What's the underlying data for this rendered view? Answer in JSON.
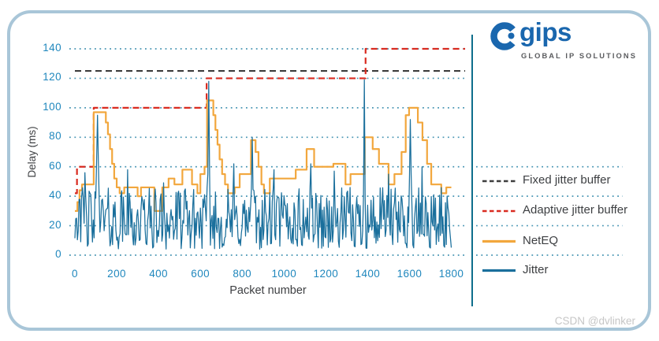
{
  "panel": {
    "border_color": "#a9c6d8",
    "background": "#ffffff"
  },
  "logo": {
    "brand": "gips",
    "tagline": "GLOBAL IP SOLUTIONS",
    "brand_color": "#1a67ae",
    "tagline_color": "#5a5b5e"
  },
  "watermark": {
    "text": "CSDN @dvlinker",
    "color": "#c6c6c6"
  },
  "legend_panel": {
    "divider_color": "#0e6e8c"
  },
  "chart_data": {
    "type": "line",
    "title": "",
    "xlabel": "Packet number",
    "ylabel": "Delay (ms)",
    "xlim": [
      0,
      1870
    ],
    "ylim": [
      0,
      150
    ],
    "x_ticks": [
      0,
      200,
      400,
      600,
      800,
      1000,
      1200,
      1400,
      1600,
      1800
    ],
    "y_ticks": [
      0,
      20,
      40,
      60,
      80,
      100,
      120,
      140
    ],
    "grid": "horizontal-dotted",
    "grid_color": "#4795b3",
    "tick_label_color": "#1f87bd",
    "axis_title_color": "#3d3f42",
    "legend_position": "right",
    "legend_text_color": "#3d3f42",
    "series": [
      {
        "name": "Fixed jitter buffer",
        "type": "hline",
        "dash": "dashed",
        "color": "#3d3d3d",
        "value": 125,
        "x_end": 1866
      },
      {
        "name": "Adaptive jitter buffer",
        "type": "step",
        "dash": "dashed",
        "color": "#d92b20",
        "x_end": 1866,
        "points": [
          [
            0,
            42
          ],
          [
            10,
            60
          ],
          [
            90,
            100
          ],
          [
            630,
            120
          ],
          [
            1390,
            140
          ]
        ]
      },
      {
        "name": "NetEQ",
        "type": "step",
        "dash": "solid",
        "color": "#f2a73d",
        "x_end": 1800,
        "points": [
          [
            0,
            30
          ],
          [
            12,
            36
          ],
          [
            22,
            44
          ],
          [
            34,
            48
          ],
          [
            90,
            97
          ],
          [
            148,
            90
          ],
          [
            158,
            82
          ],
          [
            168,
            72
          ],
          [
            178,
            62
          ],
          [
            188,
            52
          ],
          [
            200,
            46
          ],
          [
            214,
            42
          ],
          [
            236,
            46
          ],
          [
            300,
            40
          ],
          [
            316,
            46
          ],
          [
            380,
            30
          ],
          [
            418,
            46
          ],
          [
            448,
            52
          ],
          [
            476,
            48
          ],
          [
            514,
            58
          ],
          [
            560,
            48
          ],
          [
            586,
            42
          ],
          [
            600,
            55
          ],
          [
            620,
            60
          ],
          [
            632,
            105
          ],
          [
            662,
            95
          ],
          [
            672,
            85
          ],
          [
            682,
            75
          ],
          [
            692,
            65
          ],
          [
            704,
            55
          ],
          [
            718,
            48
          ],
          [
            732,
            42
          ],
          [
            764,
            46
          ],
          [
            788,
            55
          ],
          [
            842,
            78
          ],
          [
            864,
            70
          ],
          [
            878,
            60
          ],
          [
            892,
            48
          ],
          [
            904,
            42
          ],
          [
            932,
            52
          ],
          [
            1056,
            58
          ],
          [
            1108,
            72
          ],
          [
            1144,
            60
          ],
          [
            1236,
            62
          ],
          [
            1294,
            48
          ],
          [
            1318,
            55
          ],
          [
            1386,
            80
          ],
          [
            1424,
            72
          ],
          [
            1454,
            62
          ],
          [
            1500,
            48
          ],
          [
            1528,
            55
          ],
          [
            1562,
            70
          ],
          [
            1582,
            95
          ],
          [
            1598,
            100
          ],
          [
            1640,
            90
          ],
          [
            1662,
            78
          ],
          [
            1684,
            62
          ],
          [
            1704,
            48
          ],
          [
            1752,
            42
          ],
          [
            1776,
            46
          ]
        ]
      },
      {
        "name": "Jitter",
        "type": "noisy-line",
        "dash": "solid",
        "color": "#1a6f9c",
        "x_range": [
          0,
          1800
        ],
        "sample_step": 4,
        "noise": {
          "base": 4,
          "amplitude": 42,
          "power": 1.25,
          "seed": 42,
          "min": 3
        },
        "spikes": [
          [
            6,
            48,
            5
          ],
          [
            22,
            55,
            8
          ],
          [
            48,
            56,
            6
          ],
          [
            75,
            52,
            6
          ],
          [
            108,
            95,
            16
          ],
          [
            252,
            58,
            6
          ],
          [
            425,
            60,
            7
          ],
          [
            640,
            118,
            9
          ],
          [
            760,
            62,
            7
          ],
          [
            848,
            80,
            11
          ],
          [
            952,
            58,
            6
          ],
          [
            1128,
            62,
            10
          ],
          [
            1240,
            57,
            6
          ],
          [
            1384,
            119,
            7
          ],
          [
            1500,
            55,
            6
          ],
          [
            1604,
            92,
            12
          ],
          [
            1660,
            60,
            6
          ]
        ]
      }
    ]
  }
}
